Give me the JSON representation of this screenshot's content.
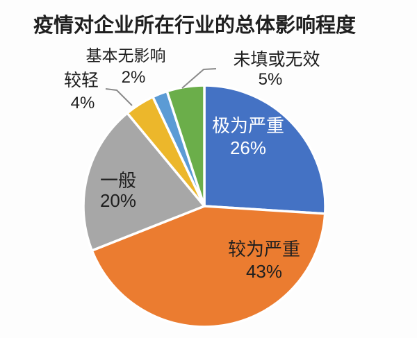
{
  "title": "疫情对企业所在行业的总体影响程度",
  "chart_data": {
    "type": "pie",
    "title": "疫情对企业所在行业的总体影响程度",
    "start_angle_deg": 0,
    "direction": "clockwise",
    "legend_position": "none",
    "label_style": "category name + percent",
    "total_percent": 100,
    "slices": [
      {
        "label": "极为严重",
        "value": 26,
        "pct_label": "26%",
        "color": "#4472C4",
        "label_placement": "inside",
        "label_color": "#FFFFFF",
        "leader_line": false
      },
      {
        "label": "较为严重",
        "value": 43,
        "pct_label": "43%",
        "color": "#EB7C30",
        "label_placement": "inside",
        "label_color": "#1F1F1F",
        "leader_line": false
      },
      {
        "label": "一般",
        "value": 20,
        "pct_label": "20%",
        "color": "#A7A7A7",
        "label_placement": "inside",
        "label_color": "#1F1F1F",
        "leader_line": false
      },
      {
        "label": "较轻",
        "value": 4,
        "pct_label": "4%",
        "color": "#ECB72B",
        "label_placement": "outside",
        "label_color": "#1F1F1F",
        "leader_line": true
      },
      {
        "label": "基本无影响",
        "value": 2,
        "pct_label": "2%",
        "color": "#5B9BD5",
        "label_placement": "outside",
        "label_color": "#1F1F1F",
        "leader_line": false
      },
      {
        "label": "未填或无效",
        "value": 5,
        "pct_label": "5%",
        "color": "#6BAE4A",
        "label_placement": "outside",
        "label_color": "#1F1F1F",
        "leader_line": true
      }
    ],
    "colors": {
      "background": "#FDFDFD",
      "slice_border": "#FFFFFF",
      "leader_line": "#8A8A8A",
      "title_color": "#1F1F1F"
    }
  }
}
